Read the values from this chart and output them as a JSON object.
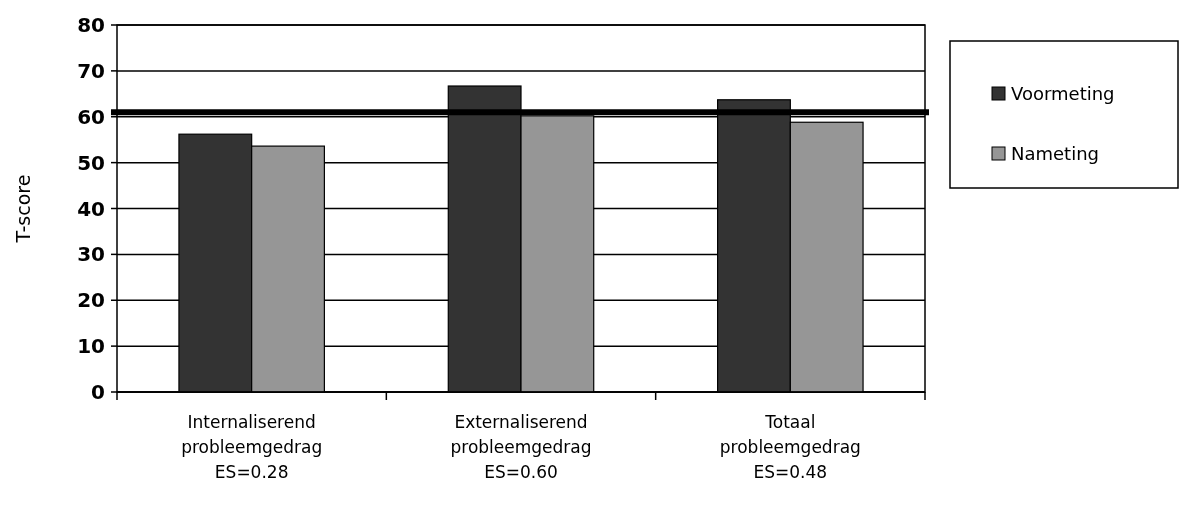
{
  "chart_data": {
    "type": "bar",
    "ylabel": "T-score",
    "categories": [
      "Internaliserend\nprobleemgedrag\nES=0.28",
      "Externaliserend\nprobleemgedrag\nES=0.60",
      "Totaal\nprobleemgedrag\nES=0.48"
    ],
    "series": [
      {
        "name": "Voormeting",
        "color": "#333333",
        "values": [
          56.2,
          66.7,
          63.7
        ]
      },
      {
        "name": "Nameting",
        "color": "#969696",
        "values": [
          53.6,
          60.2,
          58.8
        ]
      }
    ],
    "ylim": [
      0,
      80
    ],
    "yticks": [
      0,
      10,
      20,
      30,
      40,
      50,
      60,
      70,
      80
    ],
    "grid": "y",
    "legend": "right",
    "ref_lines": [
      {
        "axis": "y",
        "value": 61,
        "color": "#000000"
      }
    ]
  }
}
